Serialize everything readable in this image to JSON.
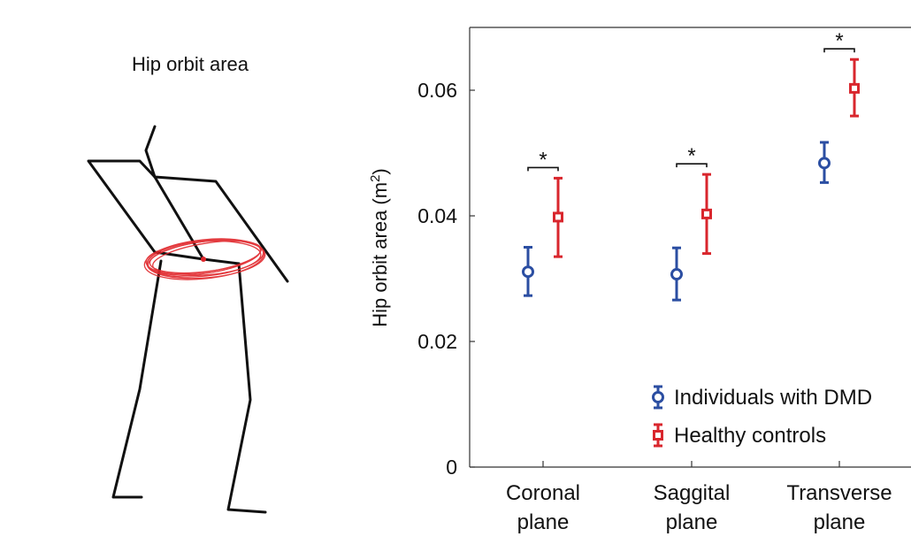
{
  "illustration": {
    "title": "Hip orbit area"
  },
  "chart_data": {
    "type": "scatter",
    "ylabel": "Hip orbit area (m²)",
    "ylim": [
      0,
      0.07
    ],
    "yticks": [
      0,
      0.02,
      0.04,
      0.06
    ],
    "ytick_labels": [
      "0",
      "0.02",
      "0.04",
      "0.06"
    ],
    "categories": [
      {
        "line1": "Coronal",
        "line2": "plane"
      },
      {
        "line1": "Saggital",
        "line2": "plane"
      },
      {
        "line1": "Transverse",
        "line2": "plane"
      }
    ],
    "series": [
      {
        "name": "Individuals with DMD",
        "color": "#2b4ea2",
        "marker": "circle",
        "values": [
          0.0311,
          0.0307,
          0.0484
        ],
        "lower": [
          0.0273,
          0.0266,
          0.0453
        ],
        "upper": [
          0.035,
          0.0349,
          0.0517
        ]
      },
      {
        "name": "Healthy controls",
        "color": "#d9262d",
        "marker": "square",
        "values": [
          0.0398,
          0.0403,
          0.0603
        ],
        "lower": [
          0.0335,
          0.034,
          0.0559
        ],
        "upper": [
          0.046,
          0.0466,
          0.0649
        ]
      }
    ],
    "significance": [
      {
        "category_index": 0,
        "label": "*"
      },
      {
        "category_index": 1,
        "label": "*"
      },
      {
        "category_index": 2,
        "label": "*"
      }
    ],
    "legend_position": "bottom-right",
    "grid": false
  }
}
